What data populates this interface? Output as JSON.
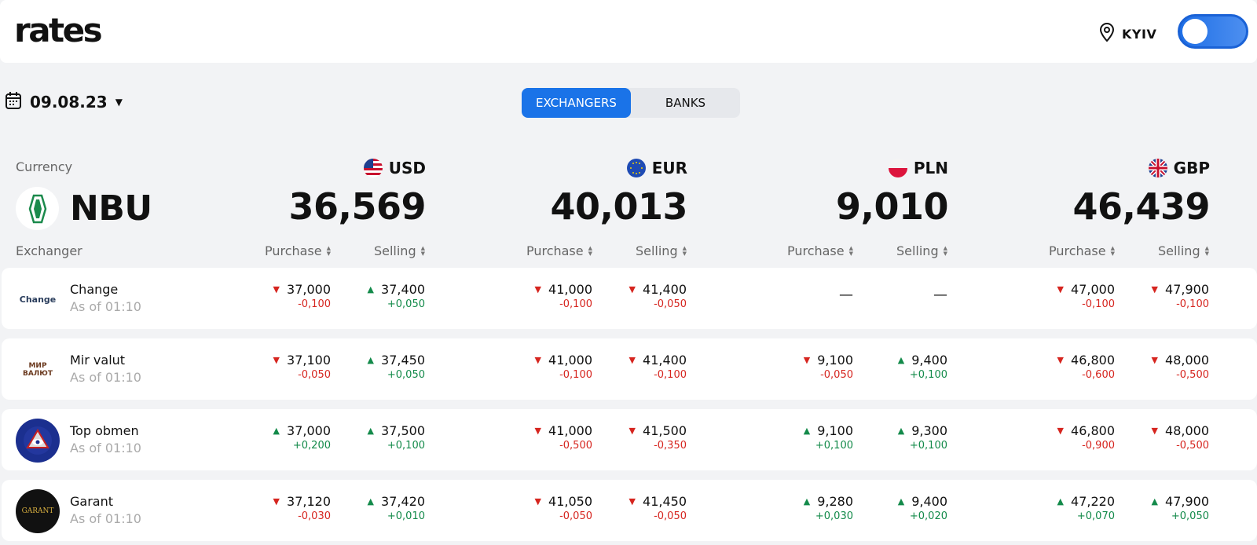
{
  "header": {
    "logo": "rates",
    "city": "KYIV"
  },
  "date": "09.08.23",
  "tabs": [
    "EXCHANGERS",
    "BANKS"
  ],
  "currency_label": "Currency",
  "exchanger_label": "Exchanger",
  "nbu": {
    "name": "NBU"
  },
  "currencies": [
    {
      "code": "USD",
      "rate": "36,569"
    },
    {
      "code": "EUR",
      "rate": "40,013"
    },
    {
      "code": "PLN",
      "rate": "9,010"
    },
    {
      "code": "GBP",
      "rate": "46,439"
    }
  ],
  "columns": {
    "purchase": "Purchase",
    "selling": "Selling"
  },
  "colors": {
    "accent": "#1a73e8",
    "up": "#138a4a",
    "down": "#d6251f"
  },
  "exchangers": [
    {
      "name": "Change",
      "logo_text": "Change",
      "time": "As of 01:10",
      "cells": [
        {
          "value": "37,000",
          "change": "-0,100",
          "dir": "down"
        },
        {
          "value": "37,400",
          "change": "+0,050",
          "dir": "up"
        },
        {
          "value": "41,000",
          "change": "-0,100",
          "dir": "down"
        },
        {
          "value": "41,400",
          "change": "-0,050",
          "dir": "down"
        },
        {
          "value": "—",
          "change": "",
          "dir": "none"
        },
        {
          "value": "—",
          "change": "",
          "dir": "none"
        },
        {
          "value": "47,000",
          "change": "-0,100",
          "dir": "down"
        },
        {
          "value": "47,900",
          "change": "-0,100",
          "dir": "down"
        }
      ]
    },
    {
      "name": "Mir valut",
      "logo_text": "МИР ВАЛЮТ",
      "time": "As of 01:10",
      "cells": [
        {
          "value": "37,100",
          "change": "-0,050",
          "dir": "down"
        },
        {
          "value": "37,450",
          "change": "+0,050",
          "dir": "up"
        },
        {
          "value": "41,000",
          "change": "-0,100",
          "dir": "down"
        },
        {
          "value": "41,400",
          "change": "-0,100",
          "dir": "down"
        },
        {
          "value": "9,100",
          "change": "-0,050",
          "dir": "down"
        },
        {
          "value": "9,400",
          "change": "+0,100",
          "dir": "up"
        },
        {
          "value": "46,800",
          "change": "-0,600",
          "dir": "down"
        },
        {
          "value": "48,000",
          "change": "-0,500",
          "dir": "down"
        }
      ]
    },
    {
      "name": "Top obmen",
      "logo_text": "",
      "time": "As of 01:10",
      "cells": [
        {
          "value": "37,000",
          "change": "+0,200",
          "dir": "up"
        },
        {
          "value": "37,500",
          "change": "+0,100",
          "dir": "up"
        },
        {
          "value": "41,000",
          "change": "-0,500",
          "dir": "down"
        },
        {
          "value": "41,500",
          "change": "-0,350",
          "dir": "down"
        },
        {
          "value": "9,100",
          "change": "+0,100",
          "dir": "up"
        },
        {
          "value": "9,300",
          "change": "+0,100",
          "dir": "up"
        },
        {
          "value": "46,800",
          "change": "-0,900",
          "dir": "down"
        },
        {
          "value": "48,000",
          "change": "-0,500",
          "dir": "down"
        }
      ]
    },
    {
      "name": "Garant",
      "logo_text": "GARANT",
      "time": "As of 01:10",
      "cells": [
        {
          "value": "37,120",
          "change": "-0,030",
          "dir": "down"
        },
        {
          "value": "37,420",
          "change": "+0,010",
          "dir": "up"
        },
        {
          "value": "41,050",
          "change": "-0,050",
          "dir": "down"
        },
        {
          "value": "41,450",
          "change": "-0,050",
          "dir": "down"
        },
        {
          "value": "9,280",
          "change": "+0,030",
          "dir": "up"
        },
        {
          "value": "9,400",
          "change": "+0,020",
          "dir": "up"
        },
        {
          "value": "47,220",
          "change": "+0,070",
          "dir": "up"
        },
        {
          "value": "47,900",
          "change": "+0,050",
          "dir": "up"
        }
      ]
    }
  ]
}
